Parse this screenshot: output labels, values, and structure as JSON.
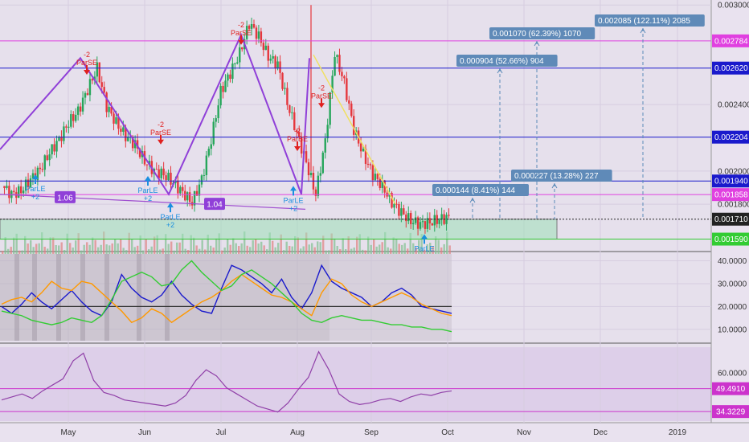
{
  "chart_data": {
    "type": "candlestick",
    "price_axis": {
      "ticks": [
        "0.003000",
        "0.002400",
        "0.002000",
        "0.001800"
      ],
      "ylim": [
        0.00152,
        0.00303
      ],
      "levels": [
        {
          "value": 0.002784,
          "label": "0.002784",
          "color": "#e040e0"
        },
        {
          "value": 0.00262,
          "label": "0.002620",
          "color": "#1a1acc"
        },
        {
          "value": 0.002204,
          "label": "0.002204",
          "color": "#1a1acc"
        },
        {
          "value": 0.00194,
          "label": "0.001940",
          "color": "#1a1acc"
        },
        {
          "value": 0.001858,
          "label": "0.001858",
          "color": "#e040e0"
        },
        {
          "value": 0.00171,
          "label": "0.001710",
          "color": "#222222"
        },
        {
          "value": 0.00159,
          "label": "0.001590",
          "color": "#33cc33"
        }
      ]
    },
    "time_axis": {
      "labels": [
        "May",
        "Jun",
        "Jul",
        "Aug",
        "Sep",
        "Oct",
        "Nov",
        "Dec",
        "2019"
      ]
    },
    "price_series": [
      0.00191,
      0.00186,
      0.00188,
      0.00195,
      0.00201,
      0.00211,
      0.00219,
      0.00229,
      0.00236,
      0.00249,
      0.00262,
      0.00239,
      0.00229,
      0.00221,
      0.00216,
      0.00206,
      0.002,
      0.00198,
      0.00193,
      0.00187,
      0.00181,
      0.00195,
      0.00219,
      0.00248,
      0.00259,
      0.00271,
      0.00289,
      0.00281,
      0.00269,
      0.00264,
      0.00241,
      0.00223,
      0.00205,
      0.00186,
      0.00218,
      0.00271,
      0.00253,
      0.00225,
      0.0021,
      0.00198,
      0.00191,
      0.00181,
      0.00175,
      0.0017,
      0.00168,
      0.00169,
      0.00171,
      0.00172
    ],
    "pattern_labels": [
      {
        "text": "1.06"
      },
      {
        "text": "1.04"
      }
    ],
    "signals": [
      {
        "text": "ParLE",
        "sub": "+2",
        "type": "long"
      },
      {
        "text": "ParSE",
        "sub": "-2",
        "type": "short"
      },
      {
        "text": "ParSE",
        "sub": "-2",
        "type": "short"
      },
      {
        "text": "ParLE",
        "sub": "+2",
        "type": "long"
      },
      {
        "text": "ParLE",
        "sub": "+2",
        "type": "long"
      },
      {
        "text": "ParSE",
        "sub": "-2",
        "type": "short"
      },
      {
        "text": "ParSE",
        "sub": "-2",
        "type": "short"
      },
      {
        "text": "ParLE",
        "sub": "+2",
        "type": "long"
      },
      {
        "text": "ParSE",
        "sub": "-2",
        "type": "short"
      },
      {
        "text": "ParLE",
        "sub": "",
        "type": "long"
      }
    ],
    "projections": [
      {
        "text": "0.000144 (8.41%) 144"
      },
      {
        "text": "0.000227 (13.28%) 227"
      },
      {
        "text": "0.000904 (52.66%) 904"
      },
      {
        "text": "0.001070 (62.39%) 1070"
      },
      {
        "text": "0.002085 (122.11%) 2085"
      }
    ],
    "adx_panel": {
      "ticks": [
        "40.0000",
        "30.0000",
        "20.0000",
        "10.0000"
      ],
      "ylim": [
        5,
        43
      ],
      "series": [
        {
          "color": "#1a1acc",
          "values": [
            20,
            17,
            21,
            26,
            22,
            19,
            23,
            27,
            22,
            18,
            16,
            22,
            34,
            28,
            24,
            22,
            25,
            31,
            25,
            21,
            18,
            17,
            28,
            38,
            36,
            33,
            30,
            26,
            32,
            24,
            19,
            26,
            38,
            31,
            28,
            26,
            24,
            20,
            22,
            26,
            28,
            25,
            20,
            19,
            18,
            17
          ]
        },
        {
          "color": "#ff9900",
          "values": [
            21,
            23,
            24,
            22,
            26,
            31,
            28,
            27,
            31,
            30,
            26,
            22,
            18,
            13,
            15,
            19,
            17,
            13,
            16,
            19,
            22,
            24,
            27,
            31,
            34,
            31,
            28,
            25,
            24,
            22,
            19,
            16,
            26,
            32,
            30,
            25,
            22,
            20,
            22,
            24,
            26,
            24,
            21,
            19,
            17,
            16
          ]
        },
        {
          "color": "#33cc33",
          "values": [
            18,
            17,
            16,
            14,
            13,
            12,
            13,
            15,
            14,
            13,
            16,
            23,
            31,
            33,
            35,
            33,
            29,
            30,
            36,
            40,
            35,
            31,
            27,
            29,
            34,
            36,
            33,
            30,
            26,
            22,
            17,
            14,
            13,
            15,
            16,
            15,
            14,
            14,
            13,
            12,
            12,
            11,
            11,
            10,
            10,
            9
          ]
        }
      ],
      "reference_level": 20
    },
    "rsi_panel": {
      "ticks": [
        "60.0000"
      ],
      "ylim": [
        28,
        77
      ],
      "levels": [
        {
          "value": 49.491,
          "label": "49.4910",
          "color": "#cc33cc"
        },
        {
          "value": 34.3229,
          "label": "34.3229",
          "color": "#cc33cc"
        }
      ],
      "values": [
        42,
        44,
        46,
        43,
        48,
        52,
        56,
        68,
        73,
        55,
        47,
        45,
        42,
        41,
        40,
        39,
        38,
        40,
        45,
        55,
        62,
        58,
        50,
        46,
        42,
        38,
        36,
        34,
        40,
        49,
        57,
        74,
        62,
        46,
        41,
        39,
        40,
        42,
        43,
        41,
        44,
        46,
        45,
        47,
        48
      ]
    }
  }
}
